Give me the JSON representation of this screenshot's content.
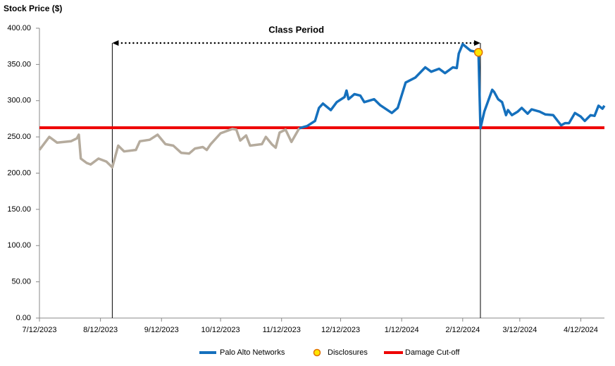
{
  "chart_data": {
    "type": "line",
    "y_label": "Stock Price ($)",
    "x": [
      "7/12/2023",
      "7/17/2023",
      "7/21/2023",
      "7/28/2023",
      "7/31/2023",
      "8/1/2023",
      "8/2/2023",
      "8/5/2023",
      "8/7/2023",
      "8/11/2023",
      "8/15/2023",
      "8/18/2023",
      "8/21/2023",
      "8/24/2023",
      "8/30/2023",
      "9/1/2023",
      "9/6/2023",
      "9/10/2023",
      "9/14/2023",
      "9/18/2023",
      "9/22/2023",
      "9/26/2023",
      "9/29/2023",
      "10/3/2023",
      "10/5/2023",
      "10/7/2023",
      "10/12/2023",
      "10/18/2023",
      "10/20/2023",
      "10/22/2023",
      "10/25/2023",
      "10/27/2023",
      "11/2/2023",
      "11/4/2023",
      "11/7/2023",
      "11/9/2023",
      "11/11/2023",
      "11/14/2023",
      "11/17/2023",
      "11/21/2023",
      "11/25/2023",
      "11/29/2023",
      "12/1/2023",
      "12/3/2023",
      "12/7/2023",
      "12/10/2023",
      "12/14/2023",
      "12/15/2023",
      "12/16/2023",
      "12/19/2023",
      "12/22/2023",
      "12/24/2023",
      "12/29/2023",
      "1/1/2024",
      "1/7/2024",
      "1/10/2024",
      "1/14/2024",
      "1/19/2024",
      "1/24/2024",
      "1/27/2024",
      "1/31/2024",
      "2/3/2024",
      "2/7/2024",
      "2/9/2024",
      "2/10/2024",
      "2/12/2024",
      "2/16/2024",
      "2/20/2024",
      "2/21/2024",
      "2/23/2024",
      "2/27/2024",
      "2/28/2024",
      "3/1/2024",
      "3/3/2024",
      "3/5/2024",
      "3/6/2024",
      "3/8/2024",
      "3/11/2024",
      "3/13/2024",
      "3/16/2024",
      "3/18/2024",
      "3/22/2024",
      "3/25/2024",
      "3/29/2024",
      "4/2/2024",
      "4/4/2024",
      "4/6/2024",
      "4/9/2024",
      "4/12/2024",
      "4/14/2024",
      "4/17/2024",
      "4/19/2024",
      "4/21/2024",
      "4/23/2024",
      "4/24/2024"
    ],
    "xlim": [
      "7/12/2023",
      "4/24/2024"
    ],
    "xticks": [
      "7/12/2023",
      "8/12/2023",
      "9/12/2023",
      "10/12/2023",
      "11/12/2023",
      "12/12/2023",
      "1/12/2024",
      "2/12/2024",
      "3/12/2024",
      "4/12/2024"
    ],
    "ylim": [
      0,
      400
    ],
    "yticks": [
      {
        "value": 0,
        "label": "0.00"
      },
      {
        "value": 50,
        "label": "50.00"
      },
      {
        "value": 100,
        "label": "100.00"
      },
      {
        "value": 150,
        "label": "150.00"
      },
      {
        "value": 200,
        "label": "200.00"
      },
      {
        "value": 250,
        "label": "250.00"
      },
      {
        "value": 300,
        "label": "300.00"
      },
      {
        "value": 350,
        "label": "350.00"
      },
      {
        "value": 400,
        "label": "400.00"
      }
    ],
    "series": [
      {
        "color": "#b5ab9d",
        "values": [
          232,
          250,
          242,
          244,
          248,
          253,
          220,
          214,
          212,
          220,
          216,
          208,
          238,
          230,
          232,
          244,
          246,
          253,
          240,
          238,
          228,
          227,
          234,
          236,
          232,
          240,
          255,
          261,
          260,
          245,
          252,
          238,
          240,
          250,
          240,
          235,
          256,
          260,
          243,
          262,
          null,
          null,
          null,
          null,
          null,
          null,
          null,
          null,
          null,
          null,
          null,
          null,
          null,
          null,
          null,
          null,
          null,
          null,
          null,
          null,
          null,
          null,
          null,
          null,
          null,
          null,
          null,
          null,
          null,
          null,
          null,
          null,
          null,
          null,
          null,
          null,
          null,
          null,
          null,
          null,
          null,
          null,
          null,
          null,
          null,
          null,
          null,
          null,
          null,
          null,
          null,
          null,
          null,
          null,
          null
        ]
      },
      {
        "name": "Palo Alto Networks",
        "color": "#1570bd",
        "values": [
          null,
          null,
          null,
          null,
          null,
          null,
          null,
          null,
          null,
          null,
          null,
          null,
          null,
          null,
          null,
          null,
          null,
          null,
          null,
          null,
          null,
          null,
          null,
          null,
          null,
          null,
          null,
          null,
          null,
          null,
          null,
          null,
          null,
          null,
          null,
          null,
          null,
          null,
          null,
          262,
          265,
          272,
          290,
          296,
          287,
          298,
          305,
          314,
          302,
          309,
          307,
          298,
          302,
          294,
          283,
          290,
          325,
          332,
          346,
          340,
          344,
          338,
          346,
          345,
          365,
          378,
          369,
          366.7,
          262,
          285,
          315,
          312,
          302,
          298,
          280,
          287,
          280,
          285,
          290,
          282,
          288,
          285,
          281,
          280,
          266,
          269,
          269,
          283,
          278,
          272,
          280,
          279,
          293,
          289,
          293
        ]
      }
    ],
    "disclosures": {
      "name": "Disclosures",
      "x": [
        "2/20/2024"
      ],
      "values": [
        366.7
      ],
      "color": "#ffe600",
      "edge_color": "#e07000"
    },
    "damage_cutoff": {
      "name": "Damage Cut-off",
      "value": 262.7,
      "color": "#ee0000"
    },
    "class_period": {
      "label": "Class Period",
      "x": [
        "8/18/2023",
        "2/21/2024"
      ]
    }
  }
}
